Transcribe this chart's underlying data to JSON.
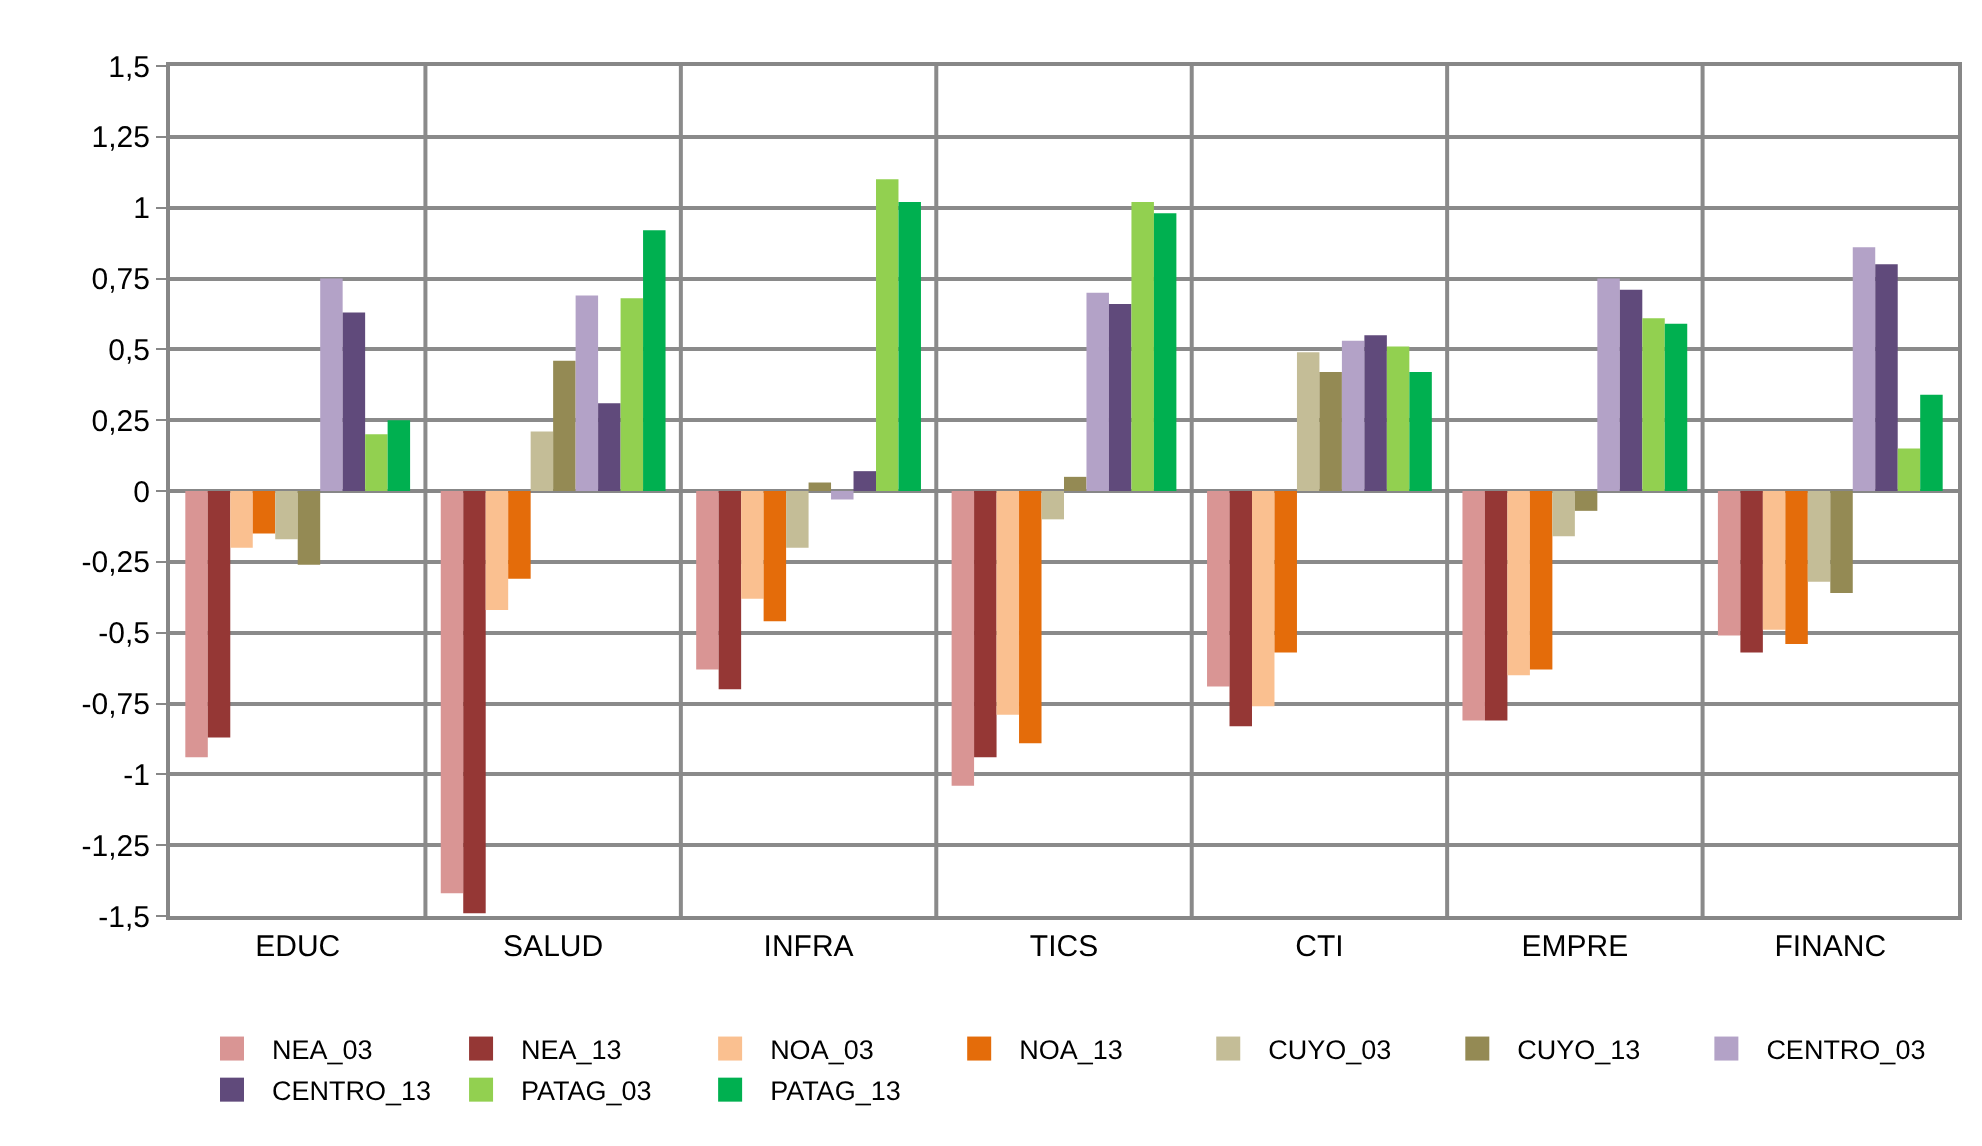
{
  "chart_data": {
    "type": "bar",
    "categories": [
      "EDUC",
      "SALUD",
      "INFRA",
      "TICS",
      "CTI",
      "EMPRE",
      "FINANC"
    ],
    "series": [
      {
        "name": "NEA_03",
        "color": "#d99594",
        "values": [
          -0.94,
          -1.42,
          -0.63,
          -1.04,
          -0.69,
          -0.81,
          -0.51
        ]
      },
      {
        "name": "NEA_13",
        "color": "#953735",
        "values": [
          -0.87,
          -1.49,
          -0.7,
          -0.94,
          -0.83,
          -0.81,
          -0.57
        ]
      },
      {
        "name": "NOA_03",
        "color": "#fac090",
        "values": [
          -0.2,
          -0.42,
          -0.38,
          -0.79,
          -0.76,
          -0.65,
          -0.49
        ]
      },
      {
        "name": "NOA_13",
        "color": "#e46c0a",
        "values": [
          -0.15,
          -0.31,
          -0.46,
          -0.89,
          -0.57,
          -0.63,
          -0.54
        ]
      },
      {
        "name": "CUYO_03",
        "color": "#c4bd97",
        "values": [
          -0.17,
          0.21,
          -0.2,
          -0.1,
          0.49,
          -0.16,
          -0.32
        ]
      },
      {
        "name": "CUYO_13",
        "color": "#948a54",
        "values": [
          -0.26,
          0.46,
          0.03,
          0.05,
          0.42,
          -0.07,
          -0.36
        ]
      },
      {
        "name": "CENTRO_03",
        "color": "#b3a2c7",
        "values": [
          0.75,
          0.69,
          -0.03,
          0.7,
          0.53,
          0.75,
          0.86
        ]
      },
      {
        "name": "CENTRO_13",
        "color": "#604a7b",
        "values": [
          0.63,
          0.31,
          0.07,
          0.66,
          0.55,
          0.71,
          0.8
        ]
      },
      {
        "name": "PATAG_03",
        "color": "#92d050",
        "values": [
          0.2,
          0.68,
          1.1,
          1.02,
          0.51,
          0.61,
          0.15
        ]
      },
      {
        "name": "PATAG_13",
        "color": "#00b050",
        "values": [
          0.25,
          0.92,
          1.02,
          0.98,
          0.42,
          0.59,
          0.34
        ]
      }
    ],
    "ylim": [
      -1.5,
      1.5
    ],
    "yticks": [
      {
        "value": -1.5,
        "label": "-1,5"
      },
      {
        "value": -1.25,
        "label": "-1,25"
      },
      {
        "value": -1,
        "label": "-1"
      },
      {
        "value": -0.75,
        "label": "-0,75"
      },
      {
        "value": -0.5,
        "label": "-0,5"
      },
      {
        "value": -0.25,
        "label": "-0,25"
      },
      0,
      {
        "value": 0.25,
        "label": "0,25"
      },
      {
        "value": 0.5,
        "label": "0,5"
      },
      {
        "value": 0.75,
        "label": "0,75"
      },
      1,
      {
        "value": 1.25,
        "label": "1,25"
      },
      {
        "value": 1.5,
        "label": "1,5"
      }
    ],
    "grid": true,
    "legend": "bottom"
  }
}
